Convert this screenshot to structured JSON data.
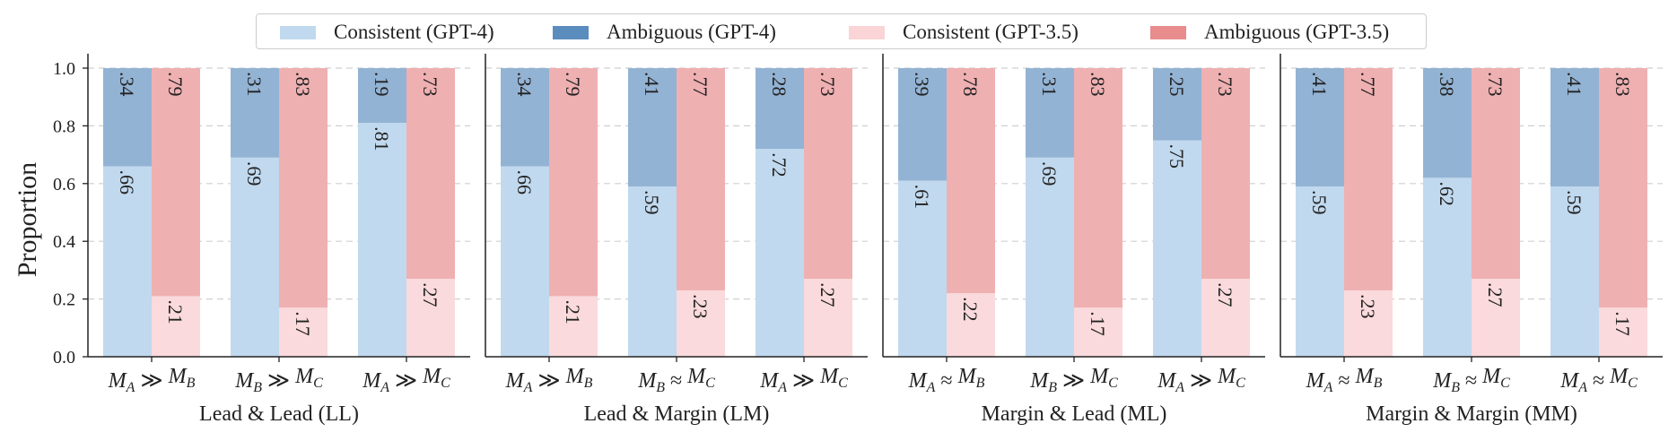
{
  "chart_data": {
    "type": "bar",
    "stacked": true,
    "ylabel": "Proportion",
    "ylim": [
      0,
      1.05
    ],
    "yticks": [
      "0.0",
      "0.2",
      "0.4",
      "0.6",
      "0.8",
      "1.0"
    ],
    "grid": "horizontal-dashed",
    "legend_position": "top-center",
    "legend": [
      {
        "label": "Consistent (GPT-4)",
        "color": "#c1d9ee"
      },
      {
        "label": "Ambiguous (GPT-4)",
        "color": "#5b8cbe"
      },
      {
        "label": "Consistent (GPT-3.5)",
        "color": "#fad4d6"
      },
      {
        "label": "Ambiguous (GPT-3.5)",
        "color": "#e88c8e"
      }
    ],
    "bar_colors": {
      "gpt4_consistent": "#c1d9ee",
      "gpt4_ambiguous": "#93b3d4",
      "gpt35_consistent": "#fadadc",
      "gpt35_ambiguous": "#efb0b2"
    },
    "groups": [
      {
        "xlabel": "Lead & Lead (LL)",
        "categories": [
          {
            "a": "A",
            "op": "≫",
            "b": "B",
            "gpt4_consistent": 0.66,
            "gpt4_ambiguous": 0.34,
            "gpt35_consistent": 0.21,
            "gpt35_ambiguous": 0.79,
            "labels": {
              "gpt4_consistent": ".66",
              "gpt4_ambiguous": ".34",
              "gpt35_consistent": ".21",
              "gpt35_ambiguous": ".79"
            }
          },
          {
            "a": "B",
            "op": "≫",
            "b": "C",
            "gpt4_consistent": 0.69,
            "gpt4_ambiguous": 0.31,
            "gpt35_consistent": 0.17,
            "gpt35_ambiguous": 0.83,
            "labels": {
              "gpt4_consistent": ".69",
              "gpt4_ambiguous": ".31",
              "gpt35_consistent": ".17",
              "gpt35_ambiguous": ".83"
            }
          },
          {
            "a": "A",
            "op": "≫",
            "b": "C",
            "gpt4_consistent": 0.81,
            "gpt4_ambiguous": 0.19,
            "gpt35_consistent": 0.27,
            "gpt35_ambiguous": 0.73,
            "labels": {
              "gpt4_consistent": ".81",
              "gpt4_ambiguous": ".19",
              "gpt35_consistent": ".27",
              "gpt35_ambiguous": ".73"
            }
          }
        ]
      },
      {
        "xlabel": "Lead & Margin (LM)",
        "categories": [
          {
            "a": "A",
            "op": "≫",
            "b": "B",
            "gpt4_consistent": 0.66,
            "gpt4_ambiguous": 0.34,
            "gpt35_consistent": 0.21,
            "gpt35_ambiguous": 0.79,
            "labels": {
              "gpt4_consistent": ".66",
              "gpt4_ambiguous": ".34",
              "gpt35_consistent": ".21",
              "gpt35_ambiguous": ".79"
            }
          },
          {
            "a": "B",
            "op": "≈",
            "b": "C",
            "gpt4_consistent": 0.59,
            "gpt4_ambiguous": 0.41,
            "gpt35_consistent": 0.23,
            "gpt35_ambiguous": 0.77,
            "labels": {
              "gpt4_consistent": ".59",
              "gpt4_ambiguous": ".41",
              "gpt35_consistent": ".23",
              "gpt35_ambiguous": ".77"
            }
          },
          {
            "a": "A",
            "op": "≫",
            "b": "C",
            "gpt4_consistent": 0.72,
            "gpt4_ambiguous": 0.28,
            "gpt35_consistent": 0.27,
            "gpt35_ambiguous": 0.73,
            "labels": {
              "gpt4_consistent": ".72",
              "gpt4_ambiguous": ".28",
              "gpt35_consistent": ".27",
              "gpt35_ambiguous": ".73"
            }
          }
        ]
      },
      {
        "xlabel": "Margin & Lead (ML)",
        "categories": [
          {
            "a": "A",
            "op": "≈",
            "b": "B",
            "gpt4_consistent": 0.61,
            "gpt4_ambiguous": 0.39,
            "gpt35_consistent": 0.22,
            "gpt35_ambiguous": 0.78,
            "labels": {
              "gpt4_consistent": ".61",
              "gpt4_ambiguous": ".39",
              "gpt35_consistent": ".22",
              "gpt35_ambiguous": ".78"
            }
          },
          {
            "a": "B",
            "op": "≫",
            "b": "C",
            "gpt4_consistent": 0.69,
            "gpt4_ambiguous": 0.31,
            "gpt35_consistent": 0.17,
            "gpt35_ambiguous": 0.83,
            "labels": {
              "gpt4_consistent": ".69",
              "gpt4_ambiguous": ".31",
              "gpt35_consistent": ".17",
              "gpt35_ambiguous": ".83"
            }
          },
          {
            "a": "A",
            "op": "≫",
            "b": "C",
            "gpt4_consistent": 0.75,
            "gpt4_ambiguous": 0.25,
            "gpt35_consistent": 0.27,
            "gpt35_ambiguous": 0.73,
            "labels": {
              "gpt4_consistent": ".75",
              "gpt4_ambiguous": ".25",
              "gpt35_consistent": ".27",
              "gpt35_ambiguous": ".73"
            }
          }
        ]
      },
      {
        "xlabel": "Margin & Margin (MM)",
        "categories": [
          {
            "a": "A",
            "op": "≈",
            "b": "B",
            "gpt4_consistent": 0.59,
            "gpt4_ambiguous": 0.41,
            "gpt35_consistent": 0.23,
            "gpt35_ambiguous": 0.77,
            "labels": {
              "gpt4_consistent": ".59",
              "gpt4_ambiguous": ".41",
              "gpt35_consistent": ".23",
              "gpt35_ambiguous": ".77"
            }
          },
          {
            "a": "B",
            "op": "≈",
            "b": "C",
            "gpt4_consistent": 0.62,
            "gpt4_ambiguous": 0.38,
            "gpt35_consistent": 0.27,
            "gpt35_ambiguous": 0.73,
            "labels": {
              "gpt4_consistent": ".62",
              "gpt4_ambiguous": ".38",
              "gpt35_consistent": ".27",
              "gpt35_ambiguous": ".73"
            }
          },
          {
            "a": "A",
            "op": "≈",
            "b": "C",
            "gpt4_consistent": 0.59,
            "gpt4_ambiguous": 0.41,
            "gpt35_consistent": 0.17,
            "gpt35_ambiguous": 0.83,
            "labels": {
              "gpt4_consistent": ".59",
              "gpt4_ambiguous": ".41",
              "gpt35_consistent": ".17",
              "gpt35_ambiguous": ".83"
            }
          }
        ]
      }
    ]
  }
}
